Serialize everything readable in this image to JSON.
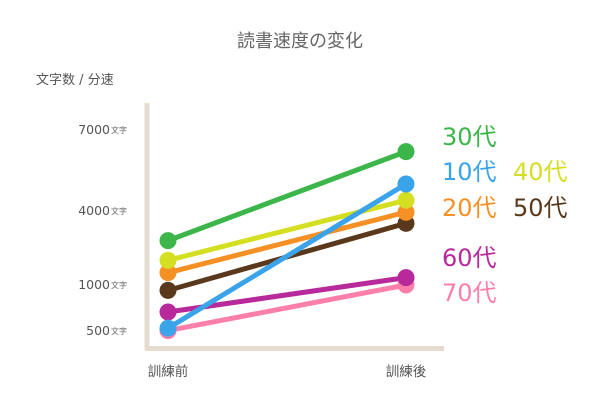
{
  "chart_data": {
    "type": "line",
    "title": "読書速度の変化",
    "ylabel": "文字数 / 分速",
    "xlabel": "",
    "categories": [
      "訓練前",
      "訓練後"
    ],
    "y_ticks": [
      {
        "value": "7000",
        "unit": "文字"
      },
      {
        "value": "4000",
        "unit": "文字"
      },
      {
        "value": "1000",
        "unit": "文字"
      },
      {
        "value": "500",
        "unit": "文字"
      }
    ],
    "series": [
      {
        "name": "30代",
        "color": "#3cb64a",
        "values": [
          2800,
          6200
        ]
      },
      {
        "name": "10代",
        "color": "#3aa3ea",
        "values": [
          520,
          5000
        ]
      },
      {
        "name": "40代",
        "color": "#d4df22",
        "values": [
          2000,
          4400
        ]
      },
      {
        "name": "20代",
        "color": "#f59025",
        "values": [
          1500,
          3950
        ]
      },
      {
        "name": "50代",
        "color": "#5a381b",
        "values": [
          940,
          3500
        ]
      },
      {
        "name": "60代",
        "color": "#b82a9c",
        "values": [
          700,
          1300
        ]
      },
      {
        "name": "70代",
        "color": "#fb7fa9",
        "values": [
          480,
          1000
        ]
      }
    ],
    "grid": false,
    "legend": "right"
  }
}
